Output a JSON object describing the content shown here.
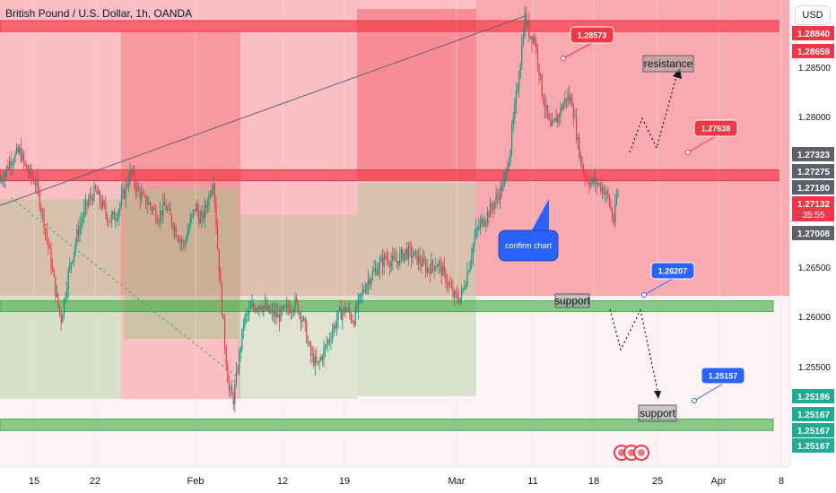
{
  "header": {
    "title": "British Pound / U.S. Dollar, 1h, OANDA",
    "currency_button": "USD"
  },
  "chart_data": {
    "type": "candlestick",
    "symbol": "British Pound / U.S. Dollar",
    "timeframe": "1h",
    "source": "OANDA",
    "ylim": [
      1.2478,
      1.2884
    ],
    "xlim": [
      0,
      880
    ],
    "x_ticks": [
      {
        "label": "15",
        "x": 38
      },
      {
        "label": "22",
        "x": 106
      },
      {
        "label": "Feb",
        "x": 218
      },
      {
        "label": "12",
        "x": 315
      },
      {
        "label": "19",
        "x": 384
      },
      {
        "label": "Mar",
        "x": 509
      },
      {
        "label": "11",
        "x": 594
      },
      {
        "label": "18",
        "x": 662
      },
      {
        "label": "25",
        "x": 733
      },
      {
        "label": "Apr",
        "x": 801
      },
      {
        "label": "8",
        "x": 871
      }
    ],
    "y_ticks": [
      "1.28500",
      "1.28000",
      "1.26500",
      "1.26000",
      "1.25500"
    ],
    "price_badges": [
      {
        "value": "1.28840",
        "color": "#f23645"
      },
      {
        "value": "1.28659",
        "color": "#f23645"
      },
      {
        "value": "1.27323",
        "color": "#5d606b"
      },
      {
        "value": "1.27275",
        "color": "#5d606b"
      },
      {
        "value": "1.27180",
        "color": "#5d606b"
      },
      {
        "value": "1.27132",
        "color": "#f23645",
        "extra": "35:55"
      },
      {
        "value": "1.27008",
        "color": "#5d606b"
      },
      {
        "value": "1.25186",
        "color": "#22ab94"
      },
      {
        "value": "1.25167",
        "color": "#22ab94"
      },
      {
        "value": "1.25167",
        "color": "#22ab94"
      },
      {
        "value": "1.25167",
        "color": "#22ab94"
      }
    ],
    "price_path": [
      [
        0,
        1.2725
      ],
      [
        12,
        1.2745
      ],
      [
        22,
        1.2752
      ],
      [
        30,
        1.2735
      ],
      [
        40,
        1.2725
      ],
      [
        48,
        1.2695
      ],
      [
        56,
        1.266
      ],
      [
        62,
        1.263
      ],
      [
        68,
        1.2605
      ],
      [
        76,
        1.2645
      ],
      [
        86,
        1.268
      ],
      [
        96,
        1.2705
      ],
      [
        106,
        1.2718
      ],
      [
        114,
        1.2705
      ],
      [
        122,
        1.2692
      ],
      [
        130,
        1.2698
      ],
      [
        138,
        1.2715
      ],
      [
        146,
        1.2735
      ],
      [
        152,
        1.272
      ],
      [
        160,
        1.271
      ],
      [
        168,
        1.2705
      ],
      [
        176,
        1.2695
      ],
      [
        184,
        1.2705
      ],
      [
        192,
        1.269
      ],
      [
        198,
        1.268
      ],
      [
        205,
        1.267
      ],
      [
        212,
        1.269
      ],
      [
        218,
        1.2705
      ],
      [
        224,
        1.269
      ],
      [
        232,
        1.271
      ],
      [
        238,
        1.273
      ],
      [
        242,
        1.2675
      ],
      [
        246,
        1.263
      ],
      [
        250,
        1.259
      ],
      [
        255,
        1.2545
      ],
      [
        260,
        1.2535
      ],
      [
        266,
        1.257
      ],
      [
        272,
        1.2605
      ],
      [
        280,
        1.2615
      ],
      [
        290,
        1.262
      ],
      [
        300,
        1.2612
      ],
      [
        310,
        1.2608
      ],
      [
        320,
        1.2615
      ],
      [
        330,
        1.262
      ],
      [
        338,
        1.2605
      ],
      [
        346,
        1.2575
      ],
      [
        354,
        1.2565
      ],
      [
        362,
        1.258
      ],
      [
        370,
        1.2595
      ],
      [
        378,
        1.261
      ],
      [
        386,
        1.2615
      ],
      [
        394,
        1.2605
      ],
      [
        402,
        1.2625
      ],
      [
        410,
        1.264
      ],
      [
        420,
        1.265
      ],
      [
        430,
        1.266
      ],
      [
        440,
        1.2655
      ],
      [
        452,
        1.2665
      ],
      [
        464,
        1.266
      ],
      [
        476,
        1.265
      ],
      [
        488,
        1.2655
      ],
      [
        498,
        1.264
      ],
      [
        506,
        1.2625
      ],
      [
        514,
        1.2625
      ],
      [
        522,
        1.265
      ],
      [
        530,
        1.268
      ],
      [
        538,
        1.2692
      ],
      [
        546,
        1.27
      ],
      [
        554,
        1.2712
      ],
      [
        562,
        1.2725
      ],
      [
        568,
        1.275
      ],
      [
        574,
        1.279
      ],
      [
        580,
        1.283
      ],
      [
        585,
        1.287
      ],
      [
        590,
        1.2855
      ],
      [
        596,
        1.285
      ],
      [
        600,
        1.283
      ],
      [
        604,
        1.2805
      ],
      [
        608,
        1.279
      ],
      [
        614,
        1.277
      ],
      [
        620,
        1.278
      ],
      [
        626,
        1.279
      ],
      [
        632,
        1.28
      ],
      [
        638,
        1.2795
      ],
      [
        644,
        1.276
      ],
      [
        650,
        1.2735
      ],
      [
        658,
        1.2725
      ],
      [
        666,
        1.2725
      ],
      [
        672,
        1.272
      ],
      [
        678,
        1.2712
      ],
      [
        684,
        1.269
      ],
      [
        688,
        1.2715
      ],
      [
        690,
        1.2713
      ]
    ],
    "trendlines": [
      {
        "from": [
          0,
          1.2705
        ],
        "to": [
          585,
          1.287
        ],
        "color": "#5d606b"
      },
      {
        "from": [
          12,
          1.2712
        ],
        "to": [
          265,
          1.2555
        ],
        "color": "#4caf50",
        "dashed": true
      }
    ],
    "zones": [
      {
        "name": "resistance-zone-upper",
        "top": 1.2866,
        "bottom": 1.2858,
        "color": "#f23645"
      },
      {
        "name": "resistance-zone-lower",
        "top": 1.2736,
        "bottom": 1.2729,
        "color": "#f23645"
      },
      {
        "name": "support-zone-upper",
        "top": 1.2622,
        "bottom": 1.2613,
        "color": "#4caf50"
      },
      {
        "name": "support-zone-lower",
        "top": 1.2519,
        "bottom": 1.2509,
        "color": "#4caf50"
      }
    ],
    "annotations": [
      {
        "text": "1.28573",
        "type": "callout",
        "color": "#f23645"
      },
      {
        "text": "1.27638",
        "type": "callout",
        "color": "#f23645"
      },
      {
        "text": "1.26207",
        "type": "callout",
        "color": "#2962ff"
      },
      {
        "text": "1.25157",
        "type": "callout",
        "color": "#2962ff"
      },
      {
        "text": "confirm chart",
        "type": "callout",
        "color": "#2962ff"
      },
      {
        "text": "resistance",
        "type": "label"
      },
      {
        "text": "support",
        "type": "label"
      },
      {
        "text": "support",
        "type": "label"
      }
    ]
  }
}
